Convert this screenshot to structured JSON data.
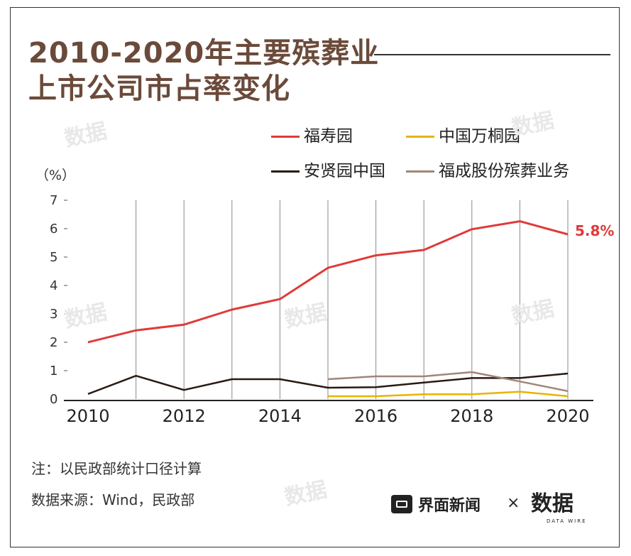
{
  "title_line1": "2010-2020年主要殡葬业",
  "title_line2": "上市公司市占率变化",
  "unit": "（%）",
  "end_label": "5.8%",
  "note": "注：以民政部统计口径计算",
  "source": "数据来源：Wind，民政部",
  "brand": "界面新闻",
  "times": "×",
  "logo2": "数据",
  "logo2_sub": "DATA WIRE",
  "watermark": "数据",
  "colors": {
    "fushouyuan": "#e03a3a",
    "zhongguo_wantong": "#e8b400",
    "anxianyuan": "#2a1a14",
    "fucheng": "#a08678"
  },
  "chart_data": {
    "type": "line",
    "x": [
      2010,
      2011,
      2012,
      2013,
      2014,
      2015,
      2016,
      2017,
      2018,
      2019,
      2020
    ],
    "xticks": [
      "2010",
      "2012",
      "2014",
      "2016",
      "2018",
      "2020"
    ],
    "yticks": [
      "0",
      "1",
      "2",
      "3",
      "4",
      "5",
      "6",
      "7"
    ],
    "ylim": [
      0,
      7
    ],
    "xlim": [
      2010,
      2020
    ],
    "grid": "vertical",
    "legend_position": "top-right",
    "series": [
      {
        "name": "福寿园",
        "color": "#e03a3a",
        "values": [
          2.0,
          2.42,
          2.62,
          3.15,
          3.52,
          4.62,
          5.06,
          5.25,
          5.98,
          6.26,
          5.8
        ]
      },
      {
        "name": "中国万桐园",
        "color": "#e8b400",
        "values": [
          null,
          null,
          null,
          null,
          null,
          0.1,
          0.1,
          0.17,
          0.17,
          0.26,
          0.1
        ]
      },
      {
        "name": "安贤园中国",
        "color": "#2a1a14",
        "values": [
          0.18,
          0.82,
          0.32,
          0.7,
          0.7,
          0.4,
          0.42,
          0.58,
          0.74,
          0.74,
          0.9
        ]
      },
      {
        "name": "福成股份殡葬业务",
        "color": "#a08678",
        "values": [
          null,
          null,
          null,
          null,
          null,
          0.7,
          0.8,
          0.8,
          0.95,
          0.62,
          0.28
        ]
      }
    ]
  }
}
